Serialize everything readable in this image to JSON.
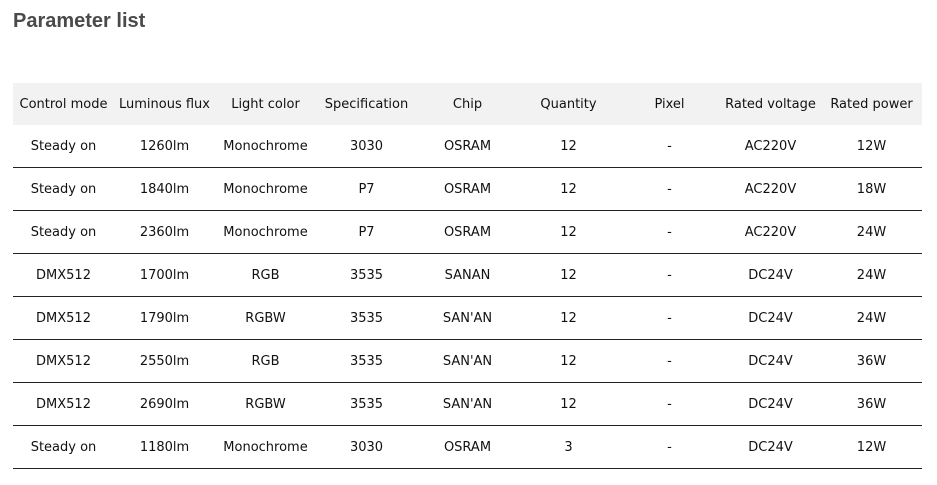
{
  "title": "Parameter list",
  "headers": [
    "Control mode",
    "Luminous flux",
    "Light color",
    "Specification",
    "Chip",
    "Quantity",
    "Pixel",
    "Rated voltage",
    "Rated power"
  ],
  "rows": [
    [
      "Steady on",
      "1260lm",
      "Monochrome",
      "3030",
      "OSRAM",
      "12",
      "-",
      "AC220V",
      "12W"
    ],
    [
      "Steady on",
      "1840lm",
      "Monochrome",
      "P7",
      "OSRAM",
      "12",
      "-",
      "AC220V",
      "18W"
    ],
    [
      "Steady on",
      "2360lm",
      "Monochrome",
      "P7",
      "OSRAM",
      "12",
      "-",
      "AC220V",
      "24W"
    ],
    [
      "DMX512",
      "1700lm",
      "RGB",
      "3535",
      "SANAN",
      "12",
      "-",
      "DC24V",
      "24W"
    ],
    [
      "DMX512",
      "1790lm",
      "RGBW",
      "3535",
      "SAN'AN",
      "12",
      "-",
      "DC24V",
      "24W"
    ],
    [
      "DMX512",
      "2550lm",
      "RGB",
      "3535",
      "SAN'AN",
      "12",
      "-",
      "DC24V",
      "36W"
    ],
    [
      "DMX512",
      "2690lm",
      "RGBW",
      "3535",
      "SAN'AN",
      "12",
      "-",
      "DC24V",
      "36W"
    ],
    [
      "Steady on",
      "1180lm",
      "Monochrome",
      "3030",
      "OSRAM",
      "3",
      "-",
      "DC24V",
      "12W"
    ]
  ]
}
